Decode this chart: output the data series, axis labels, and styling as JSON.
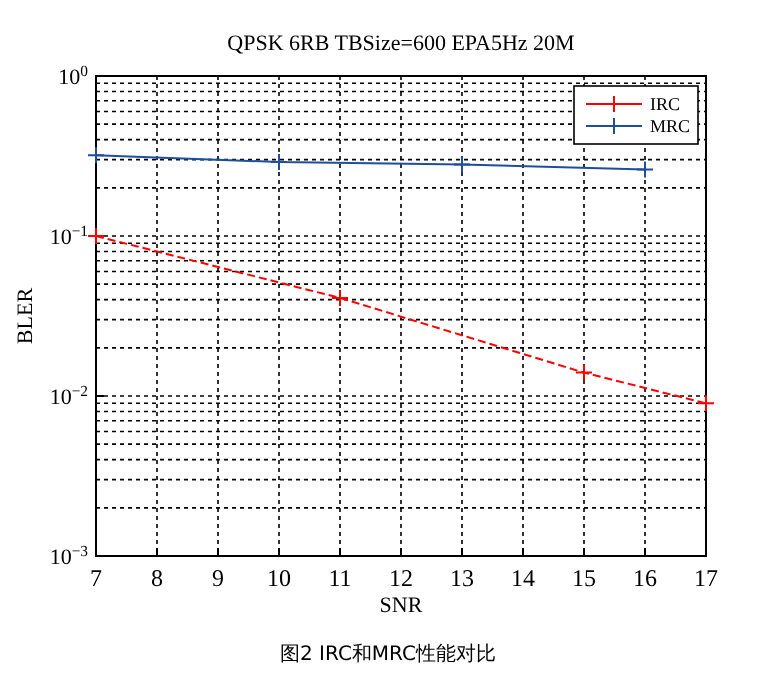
{
  "chart_data": {
    "type": "line",
    "title": "QPSK 6RB TBSize=600 EPA5Hz 20M",
    "xlabel": "SNR",
    "ylabel": "BLER",
    "log": "y",
    "xlim": [
      7,
      17
    ],
    "xticks": [
      7,
      8,
      9,
      10,
      11,
      12,
      13,
      14,
      15,
      16,
      17
    ],
    "ylim": [
      0.001,
      1
    ],
    "yticks": [
      {
        "value": 0.001,
        "label": "10$^{−3}$"
      },
      {
        "value": 0.01,
        "label": "10$^{−2}$"
      },
      {
        "value": 0.1,
        "label": "10$^{−1}$"
      },
      {
        "value": 1,
        "label": "10$^{0}$"
      }
    ],
    "grid": true,
    "legend": "top right",
    "marker": "cross",
    "series": [
      {
        "name": "IRC",
        "color": "#ff0000",
        "line_style": "dashed",
        "x": [
          7,
          11,
          15,
          17
        ],
        "values": [
          0.1,
          0.041,
          0.014,
          0.009
        ]
      },
      {
        "name": "MRC",
        "color": "#1f4e9c",
        "line_style": "solid",
        "x": [
          7,
          10,
          13,
          16
        ],
        "values": [
          0.32,
          0.29,
          0.28,
          0.26
        ]
      }
    ],
    "annotations": [
      "图2  IRC和MRC性能对比"
    ]
  }
}
